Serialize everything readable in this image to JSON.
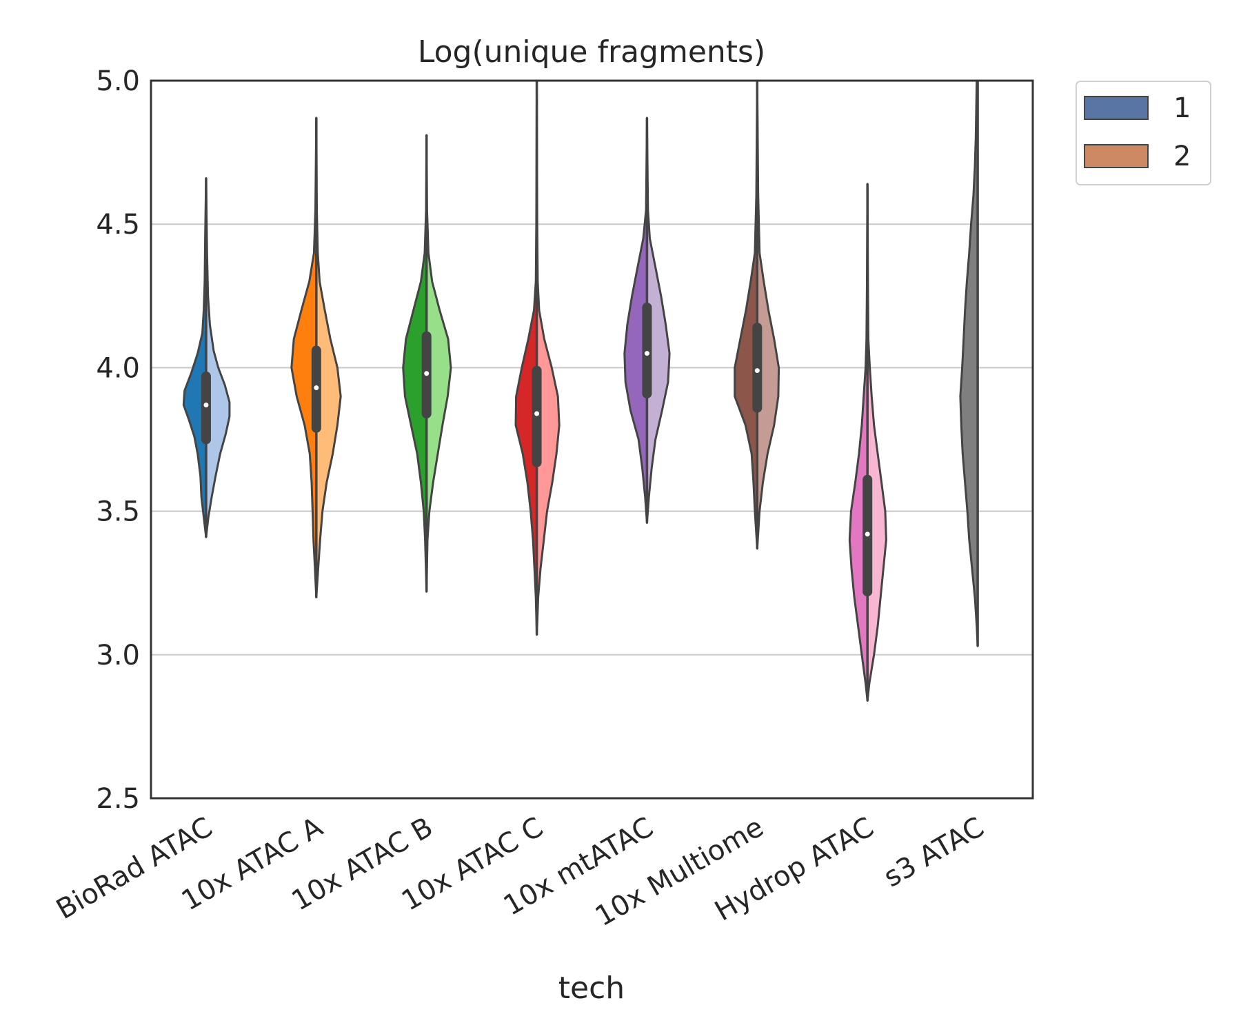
{
  "chart_data": {
    "type": "violin",
    "title": "Log(unique fragments)",
    "xlabel": "tech",
    "ylabel": "",
    "ylim": [
      2.5,
      5.0
    ],
    "yticks": [
      "2.5",
      "3.0",
      "3.5",
      "4.0",
      "4.5",
      "5.0"
    ],
    "grid": "horizontal",
    "legend": {
      "placement": "outside-top-right",
      "title": "",
      "entries": [
        {
          "label": "1",
          "color": "#5875a4"
        },
        {
          "label": "2",
          "color": "#cc8963"
        }
      ]
    },
    "categories": [
      "BioRad ATAC",
      "10x ATAC A",
      "10x ATAC B",
      "10x ATAC C",
      "10x mtATAC",
      "10x Multiome",
      "Hydrop ATAC",
      "s3 ATAC"
    ],
    "violins": [
      {
        "category": "BioRad ATAC",
        "color1": "#1f77b4",
        "color2": "#aec7e8",
        "min": 3.41,
        "max": 4.66,
        "q1": 3.75,
        "median": 3.87,
        "q3": 3.97,
        "left": [
          [
            3.41,
            0.0
          ],
          [
            3.48,
            0.05
          ],
          [
            3.55,
            0.1
          ],
          [
            3.62,
            0.12
          ],
          [
            3.7,
            0.18
          ],
          [
            3.76,
            0.25
          ],
          [
            3.82,
            0.37
          ],
          [
            3.87,
            0.48
          ],
          [
            3.92,
            0.46
          ],
          [
            3.98,
            0.32
          ],
          [
            4.05,
            0.18
          ],
          [
            4.12,
            0.08
          ],
          [
            4.2,
            0.05
          ],
          [
            4.3,
            0.03
          ],
          [
            4.45,
            0.02
          ],
          [
            4.66,
            0.0
          ]
        ],
        "right": [
          [
            3.41,
            0.0
          ],
          [
            3.48,
            0.05
          ],
          [
            3.55,
            0.12
          ],
          [
            3.62,
            0.2
          ],
          [
            3.7,
            0.3
          ],
          [
            3.77,
            0.42
          ],
          [
            3.83,
            0.5
          ],
          [
            3.88,
            0.5
          ],
          [
            3.94,
            0.4
          ],
          [
            4.0,
            0.26
          ],
          [
            4.06,
            0.16
          ],
          [
            4.15,
            0.08
          ],
          [
            4.25,
            0.04
          ],
          [
            4.4,
            0.02
          ],
          [
            4.66,
            0.0
          ]
        ]
      },
      {
        "category": "10x ATAC A",
        "color1": "#ff7f0e",
        "color2": "#ffbb78",
        "min": 3.2,
        "max": 4.87,
        "q1": 3.79,
        "median": 3.93,
        "q3": 4.06,
        "left": [
          [
            3.2,
            0.0
          ],
          [
            3.3,
            0.03
          ],
          [
            3.4,
            0.06
          ],
          [
            3.5,
            0.08
          ],
          [
            3.6,
            0.1
          ],
          [
            3.7,
            0.14
          ],
          [
            3.8,
            0.25
          ],
          [
            3.9,
            0.42
          ],
          [
            4.0,
            0.53
          ],
          [
            4.1,
            0.48
          ],
          [
            4.2,
            0.32
          ],
          [
            4.3,
            0.15
          ],
          [
            4.4,
            0.05
          ],
          [
            4.55,
            0.02
          ],
          [
            4.87,
            0.0
          ]
        ],
        "right": [
          [
            3.2,
            0.0
          ],
          [
            3.3,
            0.04
          ],
          [
            3.4,
            0.08
          ],
          [
            3.5,
            0.13
          ],
          [
            3.6,
            0.22
          ],
          [
            3.7,
            0.35
          ],
          [
            3.8,
            0.45
          ],
          [
            3.9,
            0.52
          ],
          [
            4.0,
            0.45
          ],
          [
            4.1,
            0.3
          ],
          [
            4.2,
            0.18
          ],
          [
            4.3,
            0.07
          ],
          [
            4.4,
            0.03
          ],
          [
            4.55,
            0.01
          ],
          [
            4.87,
            0.0
          ]
        ]
      },
      {
        "category": "10x ATAC B",
        "color1": "#2ca02c",
        "color2": "#98df8a",
        "min": 3.22,
        "max": 4.81,
        "q1": 3.84,
        "median": 3.98,
        "q3": 4.11,
        "left": [
          [
            3.22,
            0.0
          ],
          [
            3.4,
            0.03
          ],
          [
            3.5,
            0.06
          ],
          [
            3.6,
            0.12
          ],
          [
            3.7,
            0.2
          ],
          [
            3.8,
            0.33
          ],
          [
            3.9,
            0.46
          ],
          [
            4.0,
            0.5
          ],
          [
            4.1,
            0.44
          ],
          [
            4.2,
            0.28
          ],
          [
            4.3,
            0.12
          ],
          [
            4.4,
            0.04
          ],
          [
            4.55,
            0.01
          ],
          [
            4.81,
            0.0
          ]
        ],
        "right": [
          [
            3.22,
            0.0
          ],
          [
            3.4,
            0.02
          ],
          [
            3.5,
            0.06
          ],
          [
            3.6,
            0.14
          ],
          [
            3.7,
            0.24
          ],
          [
            3.8,
            0.34
          ],
          [
            3.9,
            0.45
          ],
          [
            4.0,
            0.52
          ],
          [
            4.1,
            0.46
          ],
          [
            4.2,
            0.28
          ],
          [
            4.3,
            0.12
          ],
          [
            4.4,
            0.04
          ],
          [
            4.55,
            0.01
          ],
          [
            4.81,
            0.0
          ]
        ]
      },
      {
        "category": "10x ATAC C",
        "color1": "#d62728",
        "color2": "#ff9896",
        "min": 3.07,
        "max": 5.0,
        "q1": 3.67,
        "median": 3.84,
        "q3": 3.99,
        "left": [
          [
            3.07,
            0.0
          ],
          [
            3.2,
            0.02
          ],
          [
            3.3,
            0.05
          ],
          [
            3.4,
            0.08
          ],
          [
            3.5,
            0.13
          ],
          [
            3.6,
            0.2
          ],
          [
            3.7,
            0.3
          ],
          [
            3.8,
            0.45
          ],
          [
            3.9,
            0.44
          ],
          [
            4.0,
            0.32
          ],
          [
            4.1,
            0.18
          ],
          [
            4.2,
            0.06
          ],
          [
            4.3,
            0.02
          ],
          [
            4.5,
            0.01
          ],
          [
            5.0,
            0.0
          ]
        ],
        "right": [
          [
            3.07,
            0.0
          ],
          [
            3.2,
            0.03
          ],
          [
            3.3,
            0.08
          ],
          [
            3.4,
            0.15
          ],
          [
            3.5,
            0.22
          ],
          [
            3.6,
            0.33
          ],
          [
            3.7,
            0.42
          ],
          [
            3.8,
            0.48
          ],
          [
            3.9,
            0.45
          ],
          [
            4.0,
            0.32
          ],
          [
            4.1,
            0.16
          ],
          [
            4.2,
            0.05
          ],
          [
            4.3,
            0.02
          ],
          [
            4.5,
            0.01
          ],
          [
            5.0,
            0.0
          ]
        ]
      },
      {
        "category": "10x mtATAC",
        "color1": "#9467bd",
        "color2": "#c5b0d5",
        "min": 3.46,
        "max": 4.87,
        "q1": 3.91,
        "median": 4.05,
        "q3": 4.21,
        "left": [
          [
            3.46,
            0.0
          ],
          [
            3.55,
            0.04
          ],
          [
            3.65,
            0.1
          ],
          [
            3.75,
            0.18
          ],
          [
            3.85,
            0.35
          ],
          [
            3.95,
            0.46
          ],
          [
            4.05,
            0.48
          ],
          [
            4.15,
            0.42
          ],
          [
            4.25,
            0.32
          ],
          [
            4.35,
            0.2
          ],
          [
            4.45,
            0.08
          ],
          [
            4.55,
            0.02
          ],
          [
            4.87,
            0.0
          ]
        ],
        "right": [
          [
            3.46,
            0.0
          ],
          [
            3.55,
            0.04
          ],
          [
            3.65,
            0.1
          ],
          [
            3.75,
            0.18
          ],
          [
            3.85,
            0.32
          ],
          [
            3.95,
            0.45
          ],
          [
            4.05,
            0.48
          ],
          [
            4.15,
            0.4
          ],
          [
            4.25,
            0.3
          ],
          [
            4.35,
            0.18
          ],
          [
            4.45,
            0.06
          ],
          [
            4.55,
            0.02
          ],
          [
            4.87,
            0.0
          ]
        ]
      },
      {
        "category": "10x Multiome",
        "color1": "#8c564b",
        "color2": "#c49c94",
        "min": 3.37,
        "max": 5.0,
        "q1": 3.86,
        "median": 3.99,
        "q3": 4.14,
        "left": [
          [
            3.37,
            0.0
          ],
          [
            3.5,
            0.05
          ],
          [
            3.6,
            0.08
          ],
          [
            3.7,
            0.12
          ],
          [
            3.8,
            0.25
          ],
          [
            3.9,
            0.48
          ],
          [
            4.0,
            0.48
          ],
          [
            4.1,
            0.36
          ],
          [
            4.2,
            0.24
          ],
          [
            4.3,
            0.14
          ],
          [
            4.4,
            0.05
          ],
          [
            4.6,
            0.02
          ],
          [
            5.0,
            0.0
          ]
        ],
        "right": [
          [
            3.37,
            0.0
          ],
          [
            3.5,
            0.05
          ],
          [
            3.6,
            0.12
          ],
          [
            3.7,
            0.22
          ],
          [
            3.8,
            0.36
          ],
          [
            3.9,
            0.45
          ],
          [
            4.0,
            0.46
          ],
          [
            4.1,
            0.36
          ],
          [
            4.2,
            0.24
          ],
          [
            4.3,
            0.14
          ],
          [
            4.4,
            0.05
          ],
          [
            4.6,
            0.02
          ],
          [
            5.0,
            0.0
          ]
        ]
      },
      {
        "category": "Hydrop ATAC",
        "color1": "#e377c2",
        "color2": "#f7b6d2",
        "min": 2.84,
        "max": 4.64,
        "q1": 3.22,
        "median": 3.42,
        "q3": 3.61,
        "left": [
          [
            2.84,
            0.0
          ],
          [
            2.9,
            0.04
          ],
          [
            3.0,
            0.12
          ],
          [
            3.1,
            0.2
          ],
          [
            3.2,
            0.28
          ],
          [
            3.3,
            0.34
          ],
          [
            3.4,
            0.38
          ],
          [
            3.5,
            0.35
          ],
          [
            3.6,
            0.26
          ],
          [
            3.7,
            0.18
          ],
          [
            3.8,
            0.12
          ],
          [
            3.9,
            0.08
          ],
          [
            4.0,
            0.04
          ],
          [
            4.1,
            0.02
          ],
          [
            4.3,
            0.01
          ],
          [
            4.64,
            0.0
          ]
        ],
        "right": [
          [
            2.84,
            0.0
          ],
          [
            2.9,
            0.04
          ],
          [
            3.0,
            0.14
          ],
          [
            3.1,
            0.22
          ],
          [
            3.2,
            0.28
          ],
          [
            3.3,
            0.34
          ],
          [
            3.4,
            0.4
          ],
          [
            3.5,
            0.38
          ],
          [
            3.6,
            0.3
          ],
          [
            3.7,
            0.22
          ],
          [
            3.8,
            0.14
          ],
          [
            3.9,
            0.09
          ],
          [
            4.0,
            0.05
          ],
          [
            4.1,
            0.02
          ],
          [
            4.3,
            0.01
          ],
          [
            4.64,
            0.0
          ]
        ]
      },
      {
        "category": "s3 ATAC",
        "color1": "#7f7f7f",
        "color2": "#7f7f7f",
        "min": 3.03,
        "max": 5.0,
        "q1": null,
        "median": null,
        "q3": null,
        "left": [
          [
            3.03,
            0.0
          ],
          [
            3.1,
            0.02
          ],
          [
            3.2,
            0.06
          ],
          [
            3.3,
            0.12
          ],
          [
            3.4,
            0.18
          ],
          [
            3.5,
            0.22
          ],
          [
            3.6,
            0.27
          ],
          [
            3.7,
            0.32
          ],
          [
            3.8,
            0.35
          ],
          [
            3.9,
            0.37
          ],
          [
            4.0,
            0.33
          ],
          [
            4.1,
            0.3
          ],
          [
            4.2,
            0.27
          ],
          [
            4.3,
            0.23
          ],
          [
            4.4,
            0.18
          ],
          [
            4.5,
            0.14
          ],
          [
            4.6,
            0.09
          ],
          [
            4.7,
            0.06
          ],
          [
            4.8,
            0.04
          ],
          [
            5.0,
            0.02
          ]
        ],
        "right": []
      }
    ]
  }
}
